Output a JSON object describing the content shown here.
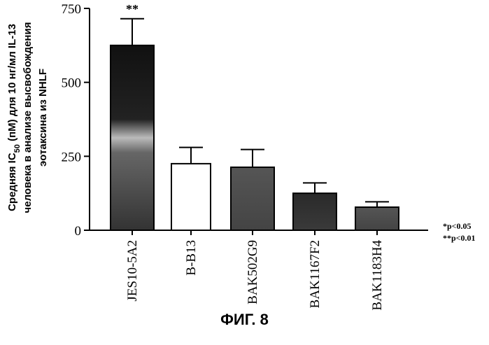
{
  "chart_data": {
    "type": "bar",
    "title": "",
    "xlabel": "",
    "ylabel": [
      "Средняя IC",
      "50",
      " (пМ) для 10 нг/мл IL-13",
      "человека в анализе высвобождения",
      "эотаксина из NHLF"
    ],
    "ylim": [
      0,
      750
    ],
    "yticks": [
      0,
      250,
      500,
      750
    ],
    "categories": [
      "JES10-5A2",
      "B-B13",
      "BAK502G9",
      "BAK1167F2",
      "BAK1183H4"
    ],
    "values": [
      625,
      225,
      213,
      125,
      78
    ],
    "errors": [
      90,
      55,
      60,
      35,
      18
    ],
    "significance": [
      "**",
      "",
      "",
      "",
      ""
    ],
    "fills": [
      "dark-gradient",
      "white",
      "gray",
      "dark",
      "gray"
    ]
  },
  "legend": {
    "single": "*p<0.05",
    "double": "**p<0.01"
  },
  "caption": "ФИГ. 8"
}
